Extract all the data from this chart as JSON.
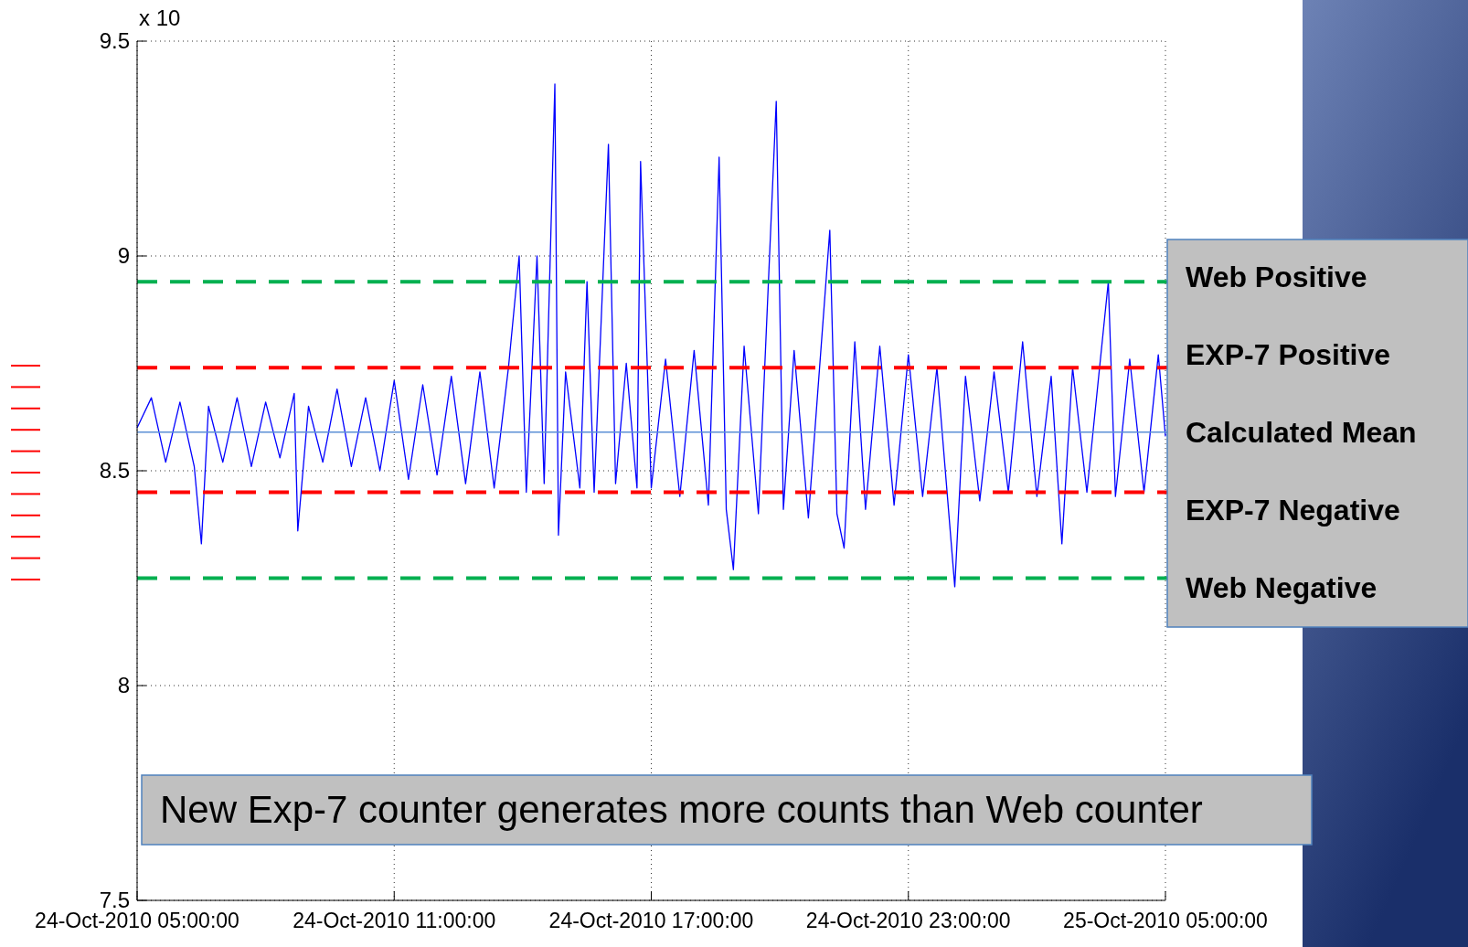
{
  "chart_data": {
    "type": "line",
    "annotations": [
      "x 10",
      "New Exp-7 counter generates more counts than Web counter"
    ],
    "ylim": [
      7.5,
      9.5
    ],
    "yticks": [
      7.5,
      8,
      8.5,
      9,
      9.5
    ],
    "xlim": [
      "2010-10-24T05:00",
      "2010-10-25T05:00"
    ],
    "xticks": [
      {
        "value": "2010-10-24T05:00",
        "label": "24-Oct-2010 05:00:00"
      },
      {
        "value": "2010-10-24T11:00",
        "label": "24-Oct-2010 11:00:00"
      },
      {
        "value": "2010-10-24T17:00",
        "label": "24-Oct-2010 17:00:00"
      },
      {
        "value": "2010-10-24T23:00",
        "label": "24-Oct-2010 23:00:00"
      },
      {
        "value": "2010-10-25T05:00",
        "label": "25-Oct-2010 05:00:00"
      }
    ],
    "grid": true,
    "marker": "none",
    "line_style": "solid",
    "x": [
      "2010-10-24T05:00",
      "2010-10-24T05:20",
      "2010-10-24T05:40",
      "2010-10-24T06:00",
      "2010-10-24T06:20",
      "2010-10-24T06:30",
      "2010-10-24T06:40",
      "2010-10-24T07:00",
      "2010-10-24T07:20",
      "2010-10-24T07:40",
      "2010-10-24T08:00",
      "2010-10-24T08:20",
      "2010-10-24T08:40",
      "2010-10-24T08:45",
      "2010-10-24T09:00",
      "2010-10-24T09:20",
      "2010-10-24T09:40",
      "2010-10-24T10:00",
      "2010-10-24T10:20",
      "2010-10-24T10:40",
      "2010-10-24T11:00",
      "2010-10-24T11:20",
      "2010-10-24T11:40",
      "2010-10-24T12:00",
      "2010-10-24T12:20",
      "2010-10-24T12:40",
      "2010-10-24T13:00",
      "2010-10-24T13:20",
      "2010-10-24T13:40",
      "2010-10-24T13:55",
      "2010-10-24T14:05",
      "2010-10-24T14:20",
      "2010-10-24T14:30",
      "2010-10-24T14:45",
      "2010-10-24T14:50",
      "2010-10-24T15:00",
      "2010-10-24T15:20",
      "2010-10-24T15:30",
      "2010-10-24T15:40",
      "2010-10-24T16:00",
      "2010-10-24T16:10",
      "2010-10-24T16:25",
      "2010-10-24T16:40",
      "2010-10-24T16:45",
      "2010-10-24T17:00",
      "2010-10-24T17:20",
      "2010-10-24T17:40",
      "2010-10-24T18:00",
      "2010-10-24T18:20",
      "2010-10-24T18:35",
      "2010-10-24T18:45",
      "2010-10-24T18:55",
      "2010-10-24T19:10",
      "2010-10-24T19:30",
      "2010-10-24T19:55",
      "2010-10-24T20:05",
      "2010-10-24T20:20",
      "2010-10-24T20:40",
      "2010-10-24T21:10",
      "2010-10-24T21:20",
      "2010-10-24T21:30",
      "2010-10-24T21:45",
      "2010-10-24T22:00",
      "2010-10-24T22:20",
      "2010-10-24T22:40",
      "2010-10-24T23:00",
      "2010-10-24T23:20",
      "2010-10-24T23:40",
      "2010-10-25T00:05",
      "2010-10-25T00:20",
      "2010-10-25T00:40",
      "2010-10-25T01:00",
      "2010-10-25T01:20",
      "2010-10-25T01:40",
      "2010-10-25T02:00",
      "2010-10-25T02:20",
      "2010-10-25T02:35",
      "2010-10-25T02:50",
      "2010-10-25T03:10",
      "2010-10-25T03:40",
      "2010-10-25T03:50",
      "2010-10-25T04:10",
      "2010-10-25T04:30",
      "2010-10-25T04:50",
      "2010-10-25T05:00"
    ],
    "series": [
      {
        "color": "#0000ff",
        "values": [
          8.6,
          8.67,
          8.52,
          8.66,
          8.51,
          8.33,
          8.65,
          8.52,
          8.67,
          8.51,
          8.66,
          8.53,
          8.68,
          8.36,
          8.65,
          8.52,
          8.69,
          8.51,
          8.67,
          8.5,
          8.71,
          8.48,
          8.7,
          8.49,
          8.72,
          8.47,
          8.73,
          8.46,
          8.74,
          9.0,
          8.45,
          9.0,
          8.47,
          9.4,
          8.35,
          8.73,
          8.46,
          8.94,
          8.45,
          9.26,
          8.47,
          8.75,
          8.46,
          9.22,
          8.46,
          8.76,
          8.44,
          8.78,
          8.42,
          9.23,
          8.41,
          8.27,
          8.79,
          8.4,
          9.36,
          8.41,
          8.78,
          8.39,
          9.06,
          8.4,
          8.32,
          8.8,
          8.41,
          8.79,
          8.42,
          8.77,
          8.44,
          8.74,
          8.23,
          8.72,
          8.43,
          8.73,
          8.45,
          8.8,
          8.44,
          8.72,
          8.33,
          8.74,
          8.45,
          8.94,
          8.44,
          8.76,
          8.45,
          8.77,
          8.58
        ]
      }
    ],
    "ref_lines": [
      {
        "axis": "y",
        "value": 8.94,
        "label": "Web Positive",
        "color": "#00b050",
        "line_style": "dashed"
      },
      {
        "axis": "y",
        "value": 8.74,
        "label": "EXP-7 Positive",
        "color": "#ff0000",
        "line_style": "dashed"
      },
      {
        "axis": "y",
        "value": 8.59,
        "label": "Calculated Mean",
        "color": "#5b8fd6",
        "line_style": "solid"
      },
      {
        "axis": "y",
        "value": 8.45,
        "label": "EXP-7 Negative",
        "color": "#ff0000",
        "line_style": "dashed"
      },
      {
        "axis": "y",
        "value": 8.25,
        "label": "Web Negative",
        "color": "#00b050",
        "line_style": "dashed"
      }
    ]
  }
}
